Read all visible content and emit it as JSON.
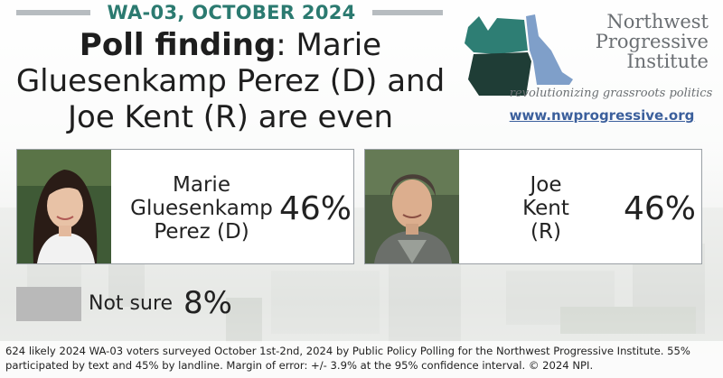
{
  "header": {
    "kicker": "WA-03, OCTOBER 2024",
    "headline_bold": "Poll finding",
    "headline_rest": ": Marie Gluesenkamp Perez (D) and Joe Kent (R) are even"
  },
  "logo": {
    "name_line1": "Northwest",
    "name_line2": "Progressive",
    "name_line3": "Institute",
    "tagline": "revolutionizing grassroots politics",
    "url": "www.nwprogressive.org"
  },
  "candidates": [
    {
      "name_line1": "Marie",
      "name_line2": "Gluesenkamp",
      "name_line3": "Perez (D)",
      "percent": "46%"
    },
    {
      "name_line1": "Joe",
      "name_line2": "Kent",
      "name_line3": "(R)",
      "percent": "46%"
    }
  ],
  "not_sure": {
    "label": "Not sure",
    "percent": "8%"
  },
  "footer": "624 likely 2024 WA-03 voters surveyed October 1st-2nd, 2024 by Public Policy Polling for the Northwest Progressive Institute. 55% participated by text and 45% by landline. Margin of error: +/- 3.9% at the 95% confidence interval. © 2024 NPI.",
  "colors": {
    "kicker": "#2b7a70",
    "url": "#3b5f9c",
    "washington": "#2e7e74",
    "oregon": "#1f3d36",
    "idaho": "#7f9fc9",
    "not_sure_swatch": "#b9b9b9"
  }
}
